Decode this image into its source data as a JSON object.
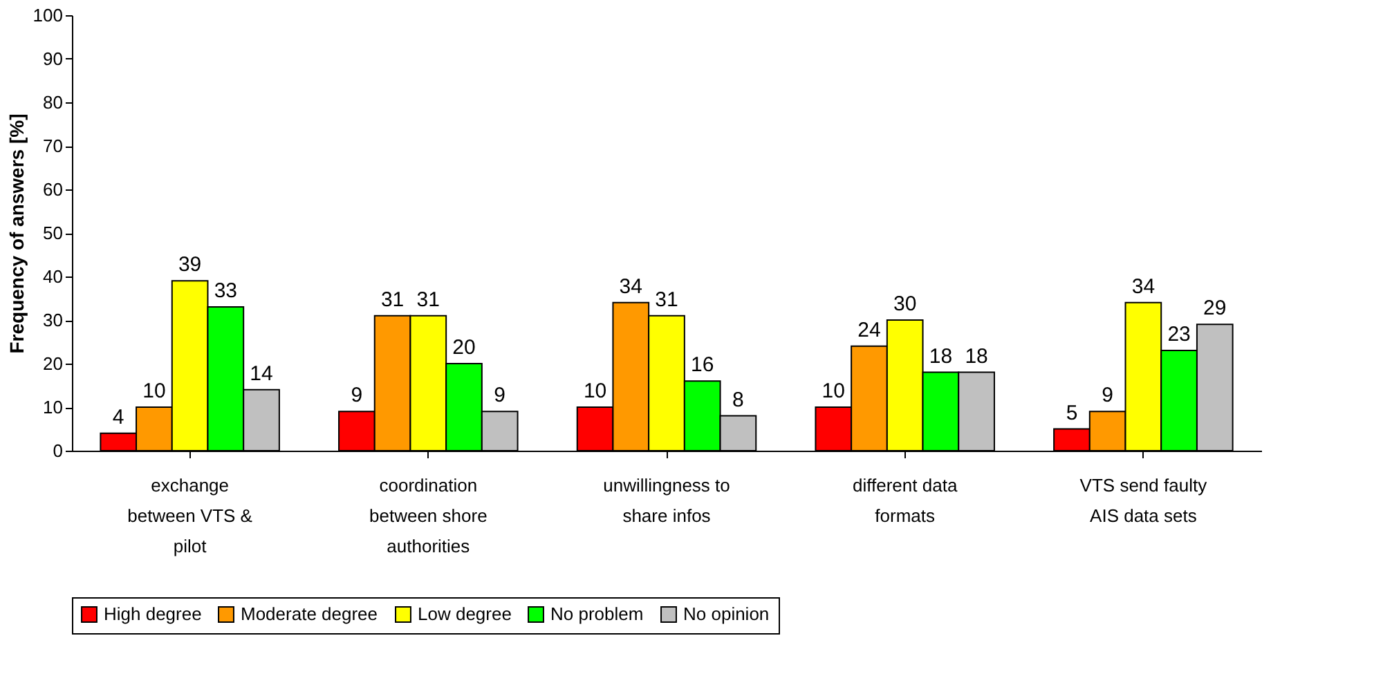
{
  "chart_data": {
    "type": "bar",
    "ylabel": "Frequency of answers [%]",
    "categories": [
      "exchange\nbetween VTS &\npilot",
      "coordination\nbetween shore\nauthorities",
      "unwillingness to\nshare infos",
      "different data\nformats",
      "VTS send faulty\nAIS data sets"
    ],
    "series": [
      {
        "name": "High degree",
        "color": "#ff0000",
        "values": [
          4,
          9,
          10,
          10,
          5
        ]
      },
      {
        "name": "Moderate degree",
        "color": "#ff9900",
        "values": [
          10,
          31,
          34,
          24,
          9
        ]
      },
      {
        "name": "Low degree",
        "color": "#ffff00",
        "values": [
          39,
          31,
          31,
          30,
          34
        ]
      },
      {
        "name": "No problem",
        "color": "#00ff00",
        "values": [
          33,
          20,
          16,
          18,
          23
        ]
      },
      {
        "name": "No opinion",
        "color": "#c0c0c0",
        "values": [
          14,
          9,
          8,
          18,
          29
        ]
      }
    ],
    "ylim": [
      0,
      100
    ],
    "yticks": [
      0,
      10,
      20,
      30,
      40,
      50,
      60,
      70,
      80,
      90,
      100
    ],
    "data_labels": true,
    "grid": false,
    "legend": "bottom"
  }
}
